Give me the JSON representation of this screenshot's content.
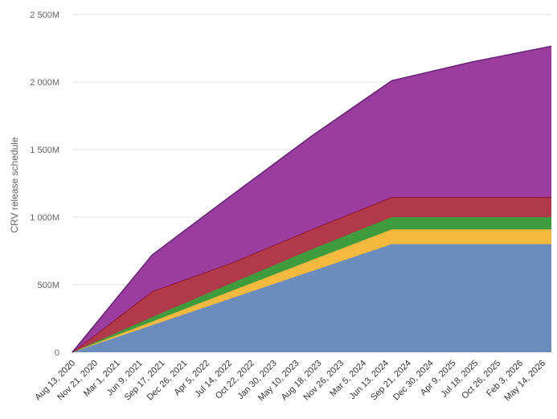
{
  "chart_data": {
    "type": "area",
    "stacked": true,
    "title": "",
    "ylabel": "CRV release schedule",
    "xlabel": "",
    "ylim": [
      0,
      2500
    ],
    "y_ticks": [
      0,
      500,
      1000,
      1500,
      2000,
      2500
    ],
    "y_tick_labels": [
      "0",
      "500M",
      "1 000M",
      "1 500M",
      "2 000M",
      "2 500M"
    ],
    "x_tick_labels": [
      "Aug 13, 2020",
      "Nov 21, 2020",
      "Mar 1, 2021",
      "Jun 9, 2021",
      "Sep 17, 2021",
      "Dec 26, 2021",
      "Apr 5, 2022",
      "Jul 14, 2022",
      "Oct 22, 2022",
      "Jan 30, 2023",
      "May 10, 2023",
      "Aug 18, 2023",
      "Nov 26, 2023",
      "Mar 5, 2024",
      "Jun 13, 2024",
      "Sep 21, 2024",
      "Dec 30, 2024",
      "Apr 9, 2025",
      "Jul 18, 2025",
      "Oct 26, 2025",
      "Feb 3, 2026",
      "May 14, 2026"
    ],
    "x": [
      "2020-08-13",
      "2021-08-13",
      "2022-08-13",
      "2023-08-13",
      "2024-08-13",
      "2025-08-13",
      "2026-08-13"
    ],
    "grid": true,
    "legend": "none",
    "series": [
      {
        "values": [
          0,
          200,
          400,
          600,
          800,
          800,
          800
        ],
        "color": "#6a8dbd"
      },
      {
        "values": [
          0,
          27,
          55,
          82,
          109,
          109,
          109
        ],
        "color": "#f5b940"
      },
      {
        "values": [
          0,
          33,
          58,
          80,
          91,
          91,
          91
        ],
        "color": "#3e9b3e"
      },
      {
        "values": [
          0,
          190,
          150,
          148,
          148,
          148,
          148
        ],
        "color": "#b03a48"
      },
      {
        "values": [
          0,
          270,
          500,
          690,
          862,
          1000,
          1117
        ],
        "color": "#9b3d9f"
      }
    ]
  }
}
